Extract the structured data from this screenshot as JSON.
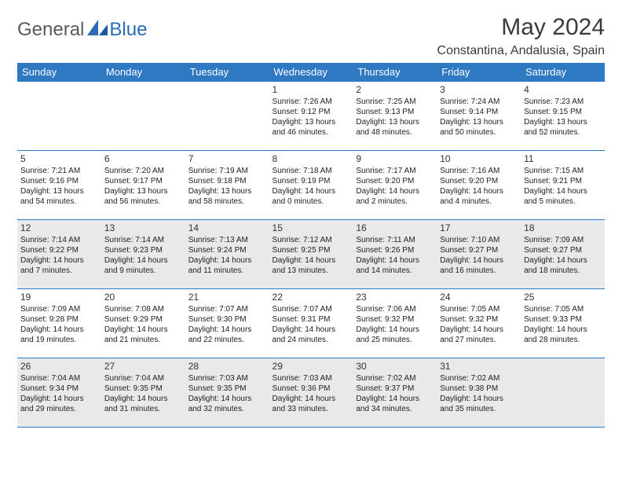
{
  "brand": {
    "word1": "General",
    "word2": "Blue"
  },
  "title": {
    "month": "May 2024",
    "location": "Constantina, Andalusia, Spain"
  },
  "colors": {
    "header_bg": "#2f79c2",
    "header_text": "#ffffff",
    "border": "#2f79c2",
    "shade": "#e9e9e9",
    "text": "#222222",
    "brand_gray": "#5a5a5a",
    "brand_blue": "#2a6db5"
  },
  "weekdays": [
    "Sunday",
    "Monday",
    "Tuesday",
    "Wednesday",
    "Thursday",
    "Friday",
    "Saturday"
  ],
  "weeks": [
    [
      null,
      null,
      null,
      {
        "n": "1",
        "sr": "Sunrise: 7:26 AM",
        "ss": "Sunset: 9:12 PM",
        "d1": "Daylight: 13 hours",
        "d2": "and 46 minutes."
      },
      {
        "n": "2",
        "sr": "Sunrise: 7:25 AM",
        "ss": "Sunset: 9:13 PM",
        "d1": "Daylight: 13 hours",
        "d2": "and 48 minutes."
      },
      {
        "n": "3",
        "sr": "Sunrise: 7:24 AM",
        "ss": "Sunset: 9:14 PM",
        "d1": "Daylight: 13 hours",
        "d2": "and 50 minutes."
      },
      {
        "n": "4",
        "sr": "Sunrise: 7:23 AM",
        "ss": "Sunset: 9:15 PM",
        "d1": "Daylight: 13 hours",
        "d2": "and 52 minutes."
      }
    ],
    [
      {
        "n": "5",
        "sr": "Sunrise: 7:21 AM",
        "ss": "Sunset: 9:16 PM",
        "d1": "Daylight: 13 hours",
        "d2": "and 54 minutes."
      },
      {
        "n": "6",
        "sr": "Sunrise: 7:20 AM",
        "ss": "Sunset: 9:17 PM",
        "d1": "Daylight: 13 hours",
        "d2": "and 56 minutes."
      },
      {
        "n": "7",
        "sr": "Sunrise: 7:19 AM",
        "ss": "Sunset: 9:18 PM",
        "d1": "Daylight: 13 hours",
        "d2": "and 58 minutes."
      },
      {
        "n": "8",
        "sr": "Sunrise: 7:18 AM",
        "ss": "Sunset: 9:19 PM",
        "d1": "Daylight: 14 hours",
        "d2": "and 0 minutes."
      },
      {
        "n": "9",
        "sr": "Sunrise: 7:17 AM",
        "ss": "Sunset: 9:20 PM",
        "d1": "Daylight: 14 hours",
        "d2": "and 2 minutes."
      },
      {
        "n": "10",
        "sr": "Sunrise: 7:16 AM",
        "ss": "Sunset: 9:20 PM",
        "d1": "Daylight: 14 hours",
        "d2": "and 4 minutes."
      },
      {
        "n": "11",
        "sr": "Sunrise: 7:15 AM",
        "ss": "Sunset: 9:21 PM",
        "d1": "Daylight: 14 hours",
        "d2": "and 5 minutes."
      }
    ],
    [
      {
        "n": "12",
        "sr": "Sunrise: 7:14 AM",
        "ss": "Sunset: 9:22 PM",
        "d1": "Daylight: 14 hours",
        "d2": "and 7 minutes."
      },
      {
        "n": "13",
        "sr": "Sunrise: 7:14 AM",
        "ss": "Sunset: 9:23 PM",
        "d1": "Daylight: 14 hours",
        "d2": "and 9 minutes."
      },
      {
        "n": "14",
        "sr": "Sunrise: 7:13 AM",
        "ss": "Sunset: 9:24 PM",
        "d1": "Daylight: 14 hours",
        "d2": "and 11 minutes."
      },
      {
        "n": "15",
        "sr": "Sunrise: 7:12 AM",
        "ss": "Sunset: 9:25 PM",
        "d1": "Daylight: 14 hours",
        "d2": "and 13 minutes."
      },
      {
        "n": "16",
        "sr": "Sunrise: 7:11 AM",
        "ss": "Sunset: 9:26 PM",
        "d1": "Daylight: 14 hours",
        "d2": "and 14 minutes."
      },
      {
        "n": "17",
        "sr": "Sunrise: 7:10 AM",
        "ss": "Sunset: 9:27 PM",
        "d1": "Daylight: 14 hours",
        "d2": "and 16 minutes."
      },
      {
        "n": "18",
        "sr": "Sunrise: 7:09 AM",
        "ss": "Sunset: 9:27 PM",
        "d1": "Daylight: 14 hours",
        "d2": "and 18 minutes."
      }
    ],
    [
      {
        "n": "19",
        "sr": "Sunrise: 7:09 AM",
        "ss": "Sunset: 9:28 PM",
        "d1": "Daylight: 14 hours",
        "d2": "and 19 minutes."
      },
      {
        "n": "20",
        "sr": "Sunrise: 7:08 AM",
        "ss": "Sunset: 9:29 PM",
        "d1": "Daylight: 14 hours",
        "d2": "and 21 minutes."
      },
      {
        "n": "21",
        "sr": "Sunrise: 7:07 AM",
        "ss": "Sunset: 9:30 PM",
        "d1": "Daylight: 14 hours",
        "d2": "and 22 minutes."
      },
      {
        "n": "22",
        "sr": "Sunrise: 7:07 AM",
        "ss": "Sunset: 9:31 PM",
        "d1": "Daylight: 14 hours",
        "d2": "and 24 minutes."
      },
      {
        "n": "23",
        "sr": "Sunrise: 7:06 AM",
        "ss": "Sunset: 9:32 PM",
        "d1": "Daylight: 14 hours",
        "d2": "and 25 minutes."
      },
      {
        "n": "24",
        "sr": "Sunrise: 7:05 AM",
        "ss": "Sunset: 9:32 PM",
        "d1": "Daylight: 14 hours",
        "d2": "and 27 minutes."
      },
      {
        "n": "25",
        "sr": "Sunrise: 7:05 AM",
        "ss": "Sunset: 9:33 PM",
        "d1": "Daylight: 14 hours",
        "d2": "and 28 minutes."
      }
    ],
    [
      {
        "n": "26",
        "sr": "Sunrise: 7:04 AM",
        "ss": "Sunset: 9:34 PM",
        "d1": "Daylight: 14 hours",
        "d2": "and 29 minutes."
      },
      {
        "n": "27",
        "sr": "Sunrise: 7:04 AM",
        "ss": "Sunset: 9:35 PM",
        "d1": "Daylight: 14 hours",
        "d2": "and 31 minutes."
      },
      {
        "n": "28",
        "sr": "Sunrise: 7:03 AM",
        "ss": "Sunset: 9:35 PM",
        "d1": "Daylight: 14 hours",
        "d2": "and 32 minutes."
      },
      {
        "n": "29",
        "sr": "Sunrise: 7:03 AM",
        "ss": "Sunset: 9:36 PM",
        "d1": "Daylight: 14 hours",
        "d2": "and 33 minutes."
      },
      {
        "n": "30",
        "sr": "Sunrise: 7:02 AM",
        "ss": "Sunset: 9:37 PM",
        "d1": "Daylight: 14 hours",
        "d2": "and 34 minutes."
      },
      {
        "n": "31",
        "sr": "Sunrise: 7:02 AM",
        "ss": "Sunset: 9:38 PM",
        "d1": "Daylight: 14 hours",
        "d2": "and 35 minutes."
      },
      null
    ]
  ],
  "shaded_rows": [
    2,
    4
  ]
}
